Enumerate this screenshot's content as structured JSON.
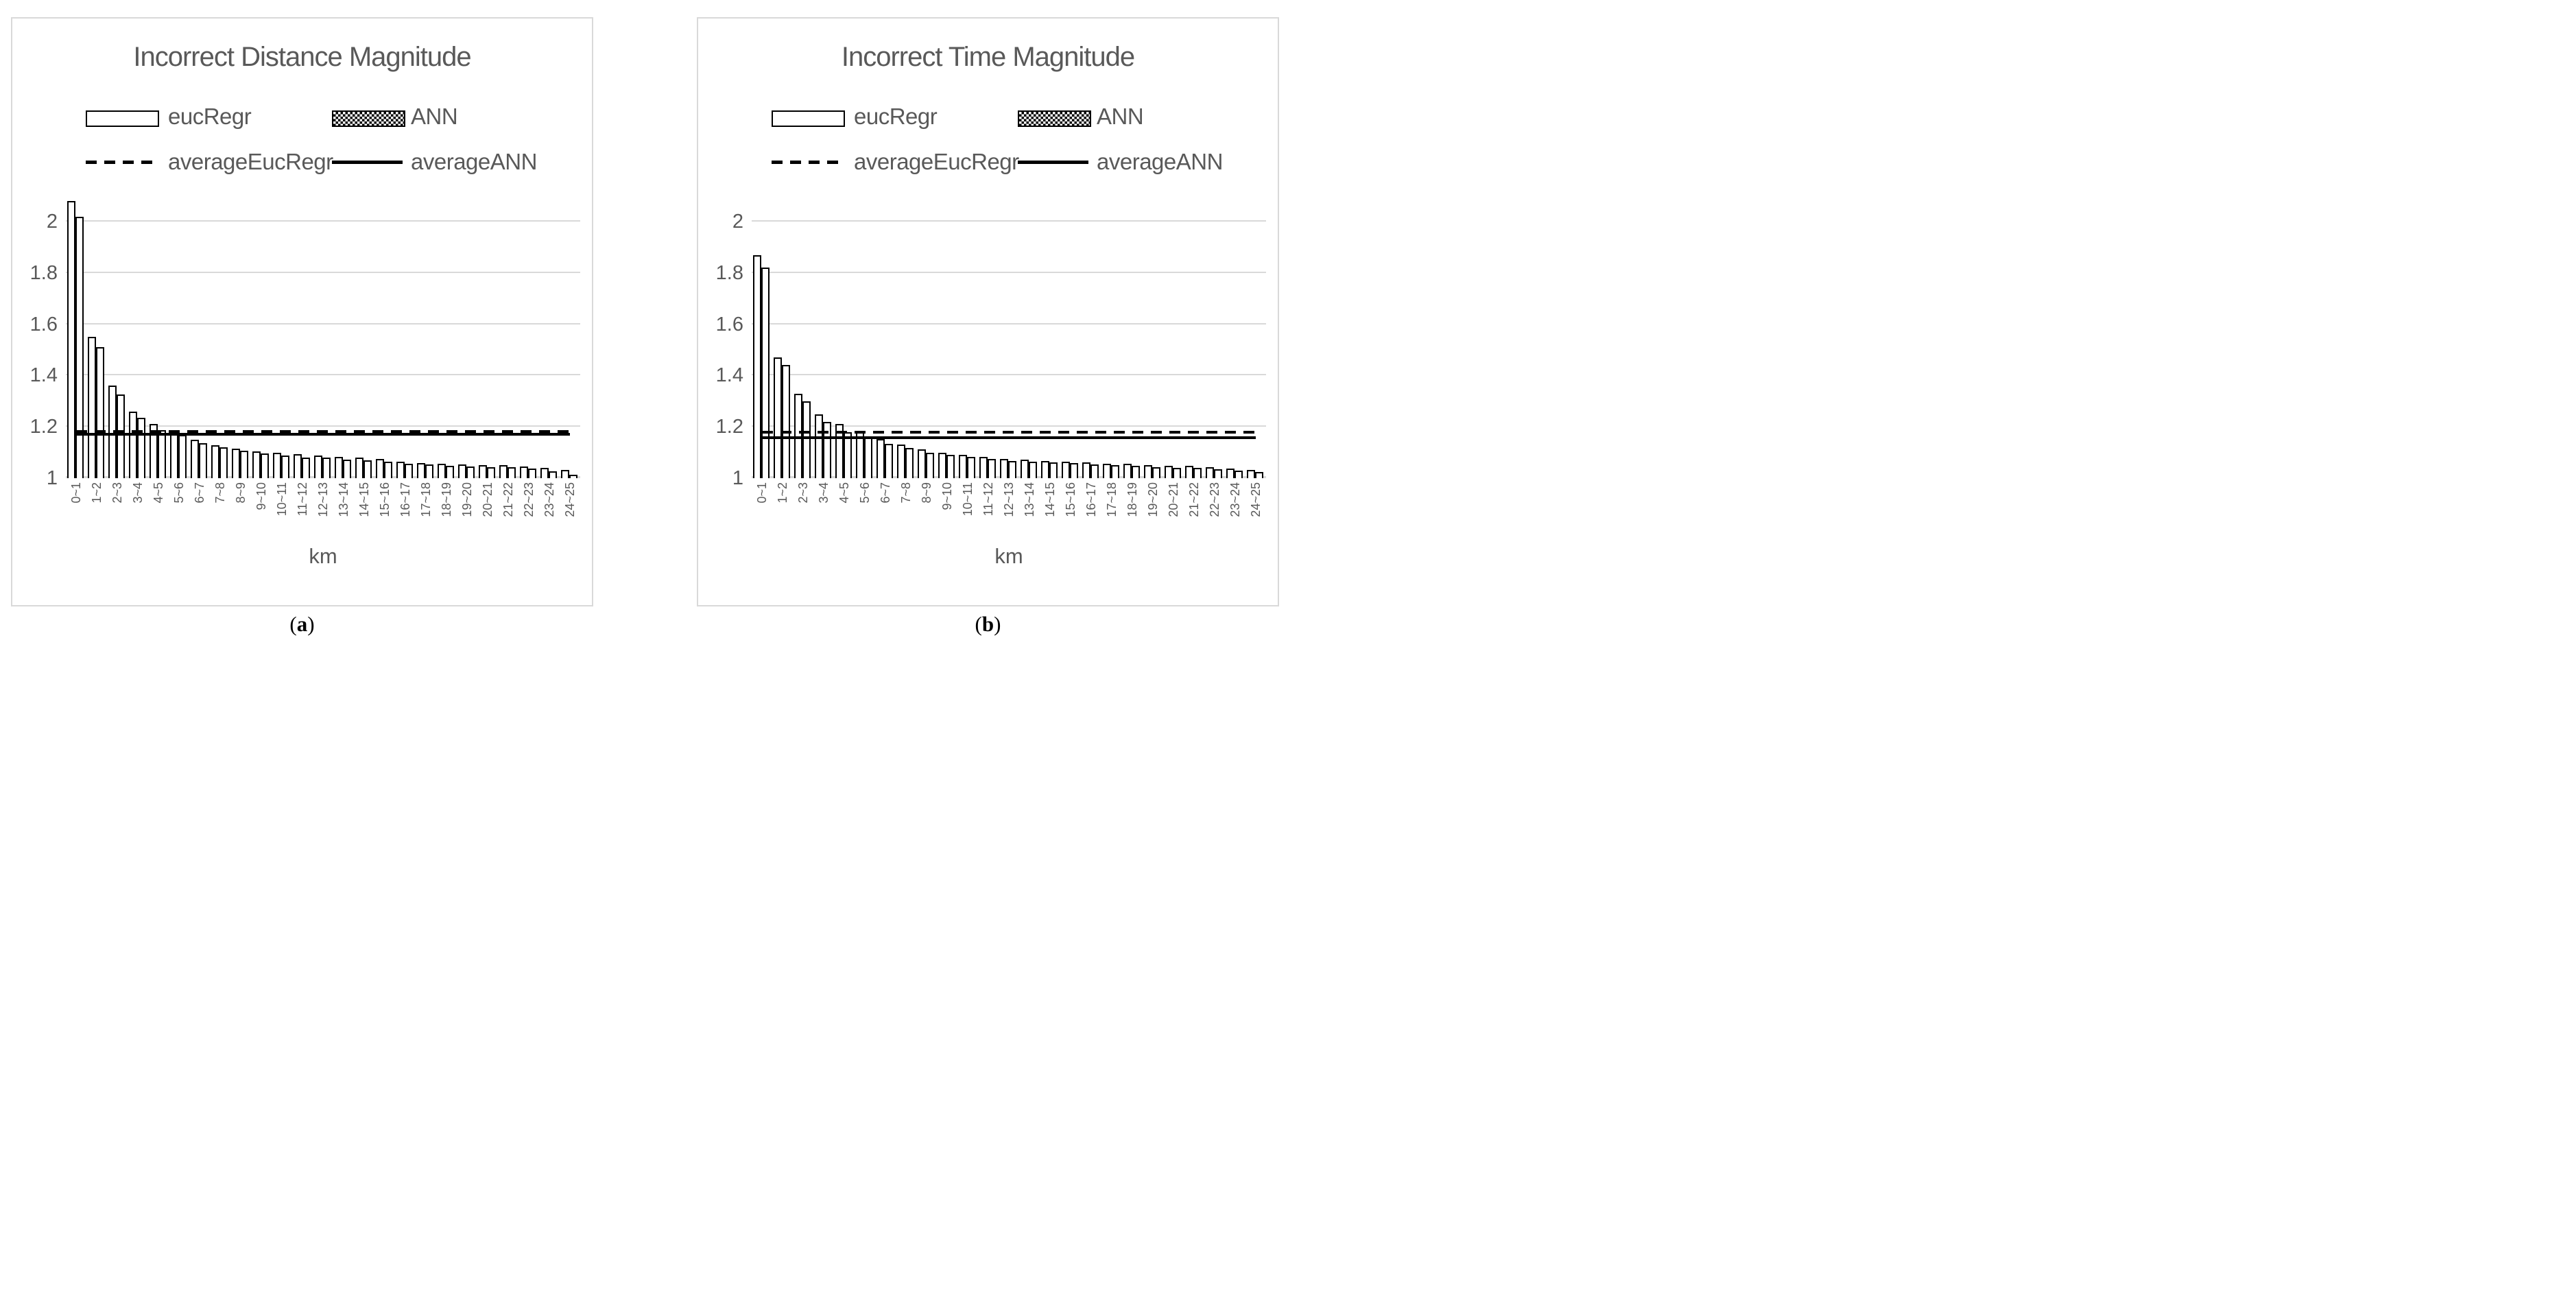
{
  "colors": {
    "title_text": "#595959",
    "axis_text": "#595959",
    "gridline": "#d9d9d9",
    "box_border": "#d9d9d9",
    "bar_border": "#000000",
    "eucRegr_fill": "#ffffff",
    "ANN_fill": "checkerboard-black-white"
  },
  "chart_data": [
    {
      "panel": "a",
      "type": "bar",
      "title": "Incorrect Distance Magnitude",
      "xlabel": "km",
      "ylim": [
        1,
        2.16
      ],
      "grid": true,
      "legend_position": "top-left, two rows",
      "y_ticks": [
        {
          "value": 1,
          "label": "1"
        },
        {
          "value": 1.2,
          "label": "1.2"
        },
        {
          "value": 1.4,
          "label": "1.4"
        },
        {
          "value": 1.6,
          "label": "1.6"
        },
        {
          "value": 1.8,
          "label": "1.8"
        },
        {
          "value": 2,
          "label": "2"
        }
      ],
      "categories": [
        "0~1",
        "1~2",
        "2~3",
        "3~4",
        "4~5",
        "5~6",
        "6~7",
        "7~8",
        "8~9",
        "9~10",
        "10~11",
        "11~12",
        "12~13",
        "13~14",
        "14~15",
        "15~16",
        "16~17",
        "17~18",
        "18~19",
        "19~20",
        "20~21",
        "21~22",
        "22~23",
        "23~24",
        "24~25"
      ],
      "series": [
        {
          "name": "eucRegr",
          "pattern": "plain",
          "values": [
            2.08,
            1.55,
            1.36,
            1.26,
            1.21,
            1.185,
            1.15,
            1.128,
            1.116,
            1.105,
            1.099,
            1.093,
            1.089,
            1.083,
            1.08,
            1.075,
            1.063,
            1.06,
            1.056,
            1.053,
            1.051,
            1.051,
            1.045,
            1.04,
            1.031
          ]
        },
        {
          "name": "ANN",
          "pattern": "checker",
          "values": [
            2.02,
            1.51,
            1.325,
            1.234,
            1.187,
            1.168,
            1.136,
            1.121,
            1.107,
            1.097,
            1.089,
            1.079,
            1.079,
            1.073,
            1.07,
            1.065,
            1.057,
            1.053,
            1.049,
            1.045,
            1.044,
            1.043,
            1.038,
            1.028,
            1.013
          ]
        }
      ],
      "lines": [
        {
          "name": "averageEucRegr",
          "style": "dashed",
          "value": 1.182
        },
        {
          "name": "averageANN",
          "style": "solid",
          "value": 1.171
        }
      ],
      "legend": [
        {
          "label": "eucRegr",
          "swatch": "bar-plain"
        },
        {
          "label": "ANN",
          "swatch": "bar-checker"
        },
        {
          "label": "averageEucRegr",
          "swatch": "line-dashed"
        },
        {
          "label": "averageANN",
          "swatch": "line-solid"
        }
      ],
      "caption": {
        "open": "(",
        "letter": "a",
        "close": ")"
      }
    },
    {
      "panel": "b",
      "type": "bar",
      "title": "Incorrect Time Magnitude",
      "xlabel": "km",
      "ylim": [
        1,
        2.16
      ],
      "grid": true,
      "legend_position": "top-left, two rows",
      "y_ticks": [
        {
          "value": 1,
          "label": "1"
        },
        {
          "value": 1.2,
          "label": "1.2"
        },
        {
          "value": 1.4,
          "label": "1.4"
        },
        {
          "value": 1.6,
          "label": "1.6"
        },
        {
          "value": 1.8,
          "label": "1.8"
        },
        {
          "value": 2,
          "label": "2"
        }
      ],
      "categories": [
        "0~1",
        "1~2",
        "2~3",
        "3~4",
        "4~5",
        "5~6",
        "6~7",
        "7~8",
        "8~9",
        "9~10",
        "10~11",
        "11~12",
        "12~13",
        "13~14",
        "14~15",
        "15~16",
        "16~17",
        "17~18",
        "18~19",
        "19~20",
        "20~21",
        "21~22",
        "22~23",
        "23~24",
        "24~25"
      ],
      "series": [
        {
          "name": "eucRegr",
          "pattern": "plain",
          "values": [
            1.87,
            1.47,
            1.33,
            1.25,
            1.21,
            1.181,
            1.152,
            1.132,
            1.112,
            1.1,
            1.091,
            1.083,
            1.075,
            1.071,
            1.068,
            1.064,
            1.061,
            1.057,
            1.055,
            1.052,
            1.049,
            1.047,
            1.043,
            1.038,
            1.033
          ]
        },
        {
          "name": "ANN",
          "pattern": "checker",
          "values": [
            1.82,
            1.44,
            1.3,
            1.22,
            1.179,
            1.163,
            1.135,
            1.118,
            1.1,
            1.091,
            1.084,
            1.075,
            1.068,
            1.064,
            1.061,
            1.058,
            1.053,
            1.05,
            1.047,
            1.043,
            1.041,
            1.039,
            1.035,
            1.03,
            1.025
          ]
        }
      ],
      "lines": [
        {
          "name": "averageEucRegr",
          "style": "dashed",
          "value": 1.179
        },
        {
          "name": "averageANN",
          "style": "solid",
          "value": 1.158
        }
      ],
      "legend": [
        {
          "label": "eucRegr",
          "swatch": "bar-plain"
        },
        {
          "label": "ANN",
          "swatch": "bar-checker"
        },
        {
          "label": "averageEucRegr",
          "swatch": "line-dashed"
        },
        {
          "label": "averageANN",
          "swatch": "line-solid"
        }
      ],
      "caption": {
        "open": "(",
        "letter": "b",
        "close": ")"
      }
    }
  ]
}
